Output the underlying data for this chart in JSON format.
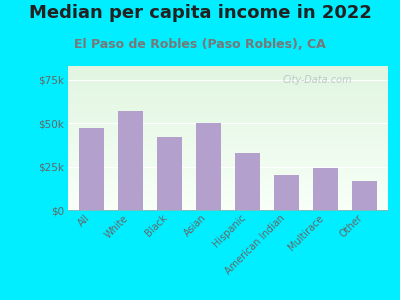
{
  "title": "Median per capita income in 2022",
  "subtitle": "El Paso de Robles (Paso Robles), CA",
  "categories": [
    "All",
    "White",
    "Black",
    "Asian",
    "Hispanic",
    "American Indian",
    "Multirace",
    "Other"
  ],
  "values": [
    47000,
    57000,
    42000,
    50000,
    33000,
    20000,
    24000,
    17000
  ],
  "bar_color": "#b3a0cc",
  "background_outer": "#00eeff",
  "title_color": "#222222",
  "subtitle_color": "#777777",
  "axis_label_color": "#666666",
  "ytick_labels": [
    "$0",
    "$25k",
    "$50k",
    "$75k"
  ],
  "ytick_values": [
    0,
    25000,
    50000,
    75000
  ],
  "ylim": [
    0,
    83000
  ],
  "watermark": "City-Data.com",
  "title_fontsize": 13,
  "subtitle_fontsize": 9
}
